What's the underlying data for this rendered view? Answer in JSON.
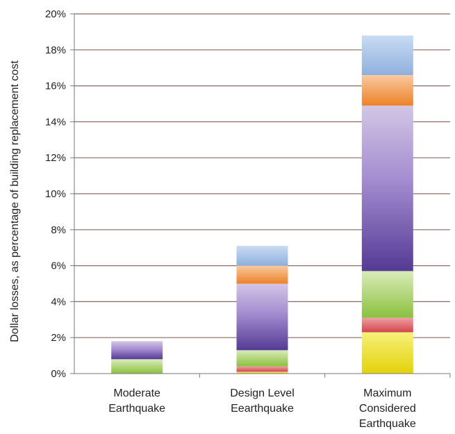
{
  "chart_data": {
    "type": "bar",
    "stacked": true,
    "title": "",
    "xlabel": "",
    "ylabel": "Dollar losses, as percentage of building replacement cost",
    "ylim": [
      0,
      20
    ],
    "yticks": [
      "0%",
      "2%",
      "4%",
      "6%",
      "8%",
      "10%",
      "12%",
      "14%",
      "16%",
      "18%",
      "20%"
    ],
    "grid": true,
    "legend": "none",
    "categories": [
      [
        "Moderate",
        "Earthquake"
      ],
      [
        "Design Level",
        "Eearthquake"
      ],
      [
        "Maximum",
        "Considered",
        "Earthquake"
      ]
    ],
    "series": [
      {
        "color": "#e8dc1e",
        "values": [
          0.0,
          0.1,
          2.3
        ]
      },
      {
        "color": "#d9545a",
        "values": [
          0.0,
          0.3,
          0.8
        ]
      },
      {
        "color": "#9ac84e",
        "values": [
          0.8,
          0.9,
          2.6
        ]
      },
      {
        "color": "#7a59b0",
        "values": [
          1.0,
          3.7,
          9.2
        ]
      },
      {
        "color": "#f0913a",
        "values": [
          0.0,
          1.0,
          1.7
        ]
      },
      {
        "color": "#93b5e0",
        "values": [
          0.0,
          1.1,
          2.2
        ]
      }
    ]
  }
}
